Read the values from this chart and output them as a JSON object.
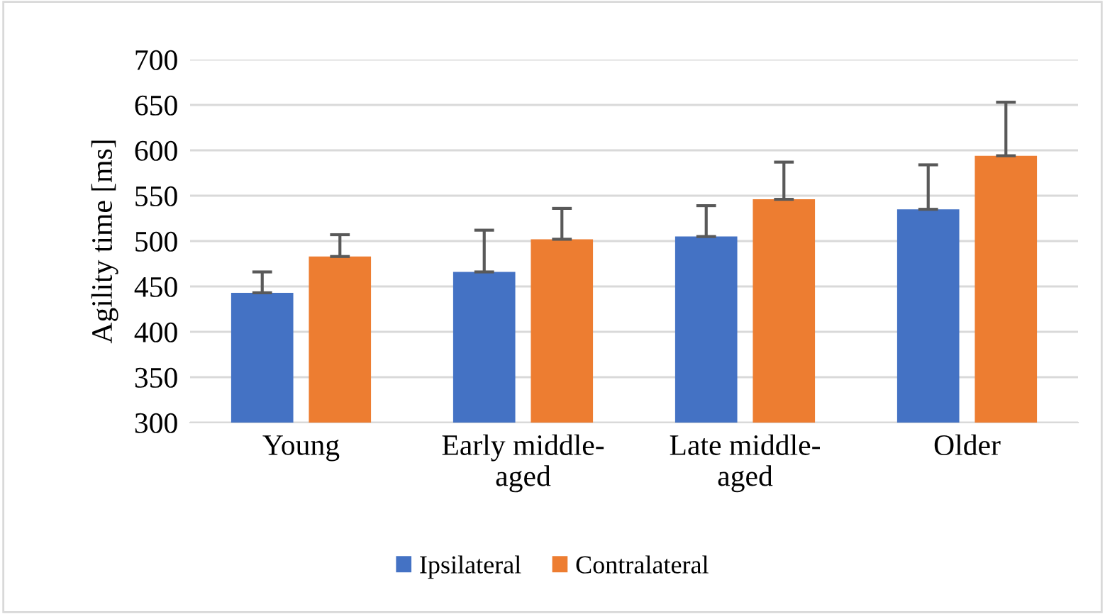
{
  "chart_data": {
    "type": "bar",
    "ylabel": "Agility time [ms]",
    "categories": [
      "Young",
      "Early middle-\naged",
      "Late middle-\naged",
      "Older"
    ],
    "series": [
      {
        "name": "Ipsilateral",
        "color": "#4472c4",
        "values": [
          443,
          466,
          505,
          535
        ],
        "errors": [
          23,
          46,
          34,
          49
        ]
      },
      {
        "name": "Contralateral",
        "color": "#ed7d31",
        "values": [
          483,
          502,
          546,
          594
        ],
        "errors": [
          24,
          34,
          41,
          59
        ]
      }
    ],
    "ylim": [
      300,
      700
    ],
    "yticks": [
      300,
      350,
      400,
      450,
      500,
      550,
      600,
      650,
      700
    ],
    "grid": "y",
    "legend": "bottom"
  }
}
